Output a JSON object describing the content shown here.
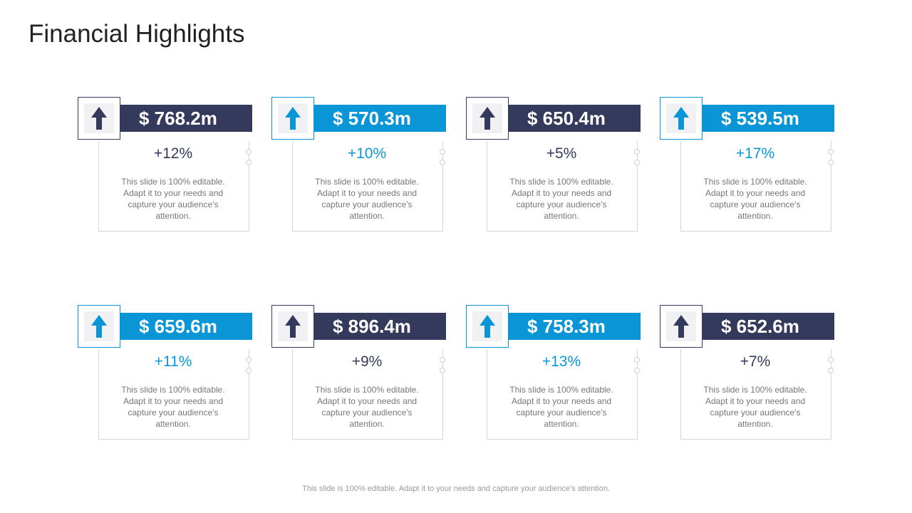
{
  "title": "Financial Highlights",
  "colors": {
    "dark": "#333a5c",
    "accent": "#0a96d6"
  },
  "cards": [
    {
      "amount": "$ 768.2m",
      "change": "+12%",
      "theme": "dark",
      "icon": "arrow-up-icon",
      "desc": "This slide is 100% editable. Adapt it to your needs and capture your audience's attention."
    },
    {
      "amount": "$ 570.3m",
      "change": "+10%",
      "theme": "accent",
      "icon": "arrow-up-icon",
      "desc": "This slide is 100% editable. Adapt it to your needs and capture your audience's attention."
    },
    {
      "amount": "$ 650.4m",
      "change": "+5%",
      "theme": "dark",
      "icon": "arrow-up-icon",
      "desc": "This slide is 100% editable. Adapt it to your needs and capture your audience's attention."
    },
    {
      "amount": "$ 539.5m",
      "change": "+17%",
      "theme": "accent",
      "icon": "arrow-up-icon",
      "desc": "This slide is 100% editable. Adapt it to your needs and capture your audience's attention."
    },
    {
      "amount": "$ 659.6m",
      "change": "+11%",
      "theme": "accent",
      "icon": "arrow-up-icon",
      "desc": "This slide is 100% editable. Adapt it to your needs and capture your audience's attention."
    },
    {
      "amount": "$ 896.4m",
      "change": "+9%",
      "theme": "dark",
      "icon": "arrow-up-icon",
      "desc": "This slide is 100% editable. Adapt it to your needs and capture your audience's attention."
    },
    {
      "amount": "$ 758.3m",
      "change": "+13%",
      "theme": "accent",
      "icon": "arrow-up-icon",
      "desc": "This slide is 100% editable. Adapt it to your needs and capture your audience's attention."
    },
    {
      "amount": "$ 652.6m",
      "change": "+7%",
      "theme": "dark",
      "icon": "arrow-up-icon",
      "desc": "This slide is 100% editable. Adapt it to your needs and capture your audience's attention."
    }
  ],
  "footer": "This slide is 100% editable. Adapt it to your needs and capture your audience's attention."
}
